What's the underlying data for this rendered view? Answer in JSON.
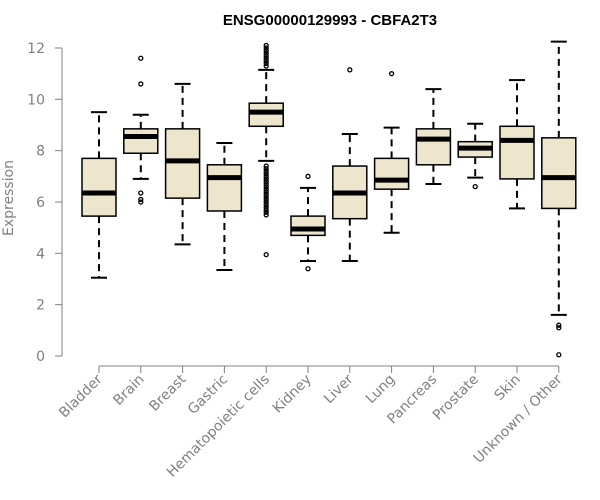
{
  "chart_data": {
    "type": "boxplot",
    "title": "ENSG00000129993 - CBFA2T3",
    "xlabel": "",
    "ylabel": "Expression",
    "ylim": [
      0,
      12
    ],
    "yticks": [
      0,
      2,
      4,
      6,
      8,
      10,
      12
    ],
    "box_fill": "#ede5cc",
    "categories": [
      "Bladder",
      "Brain",
      "Breast",
      "Gastric",
      "Hematopoietic cells",
      "Kidney",
      "Liver",
      "Lung",
      "Pancreas",
      "Prostate",
      "Skin",
      "Unknown / Other"
    ],
    "boxes": [
      {
        "category": "Bladder",
        "whisker_low": 3.05,
        "q1": 5.45,
        "median": 6.35,
        "q3": 7.7,
        "whisker_high": 9.5,
        "outliers": []
      },
      {
        "category": "Brain",
        "whisker_low": 6.9,
        "q1": 7.9,
        "median": 8.55,
        "q3": 8.85,
        "whisker_high": 9.4,
        "outliers": [
          11.6,
          10.6,
          6.35,
          6.1,
          6.0
        ]
      },
      {
        "category": "Breast",
        "whisker_low": 4.35,
        "q1": 6.15,
        "median": 7.6,
        "q3": 8.85,
        "whisker_high": 10.6,
        "outliers": []
      },
      {
        "category": "Gastric",
        "whisker_low": 3.35,
        "q1": 5.65,
        "median": 6.95,
        "q3": 7.45,
        "whisker_high": 8.3,
        "outliers": []
      },
      {
        "category": "Hematopoietic cells",
        "whisker_low": 7.6,
        "q1": 8.95,
        "median": 9.5,
        "q3": 9.85,
        "whisker_high": 11.15,
        "outliers": [
          12.1,
          12.0,
          11.9,
          11.8,
          11.7,
          11.6,
          11.5,
          11.4,
          11.3,
          7.4,
          7.3,
          7.2,
          7.1,
          7.0,
          6.9,
          6.8,
          6.7,
          6.6,
          6.5,
          6.4,
          6.3,
          6.2,
          6.1,
          6.0,
          5.9,
          5.8,
          5.7,
          5.6,
          5.5,
          3.95
        ]
      },
      {
        "category": "Kidney",
        "whisker_low": 3.7,
        "q1": 4.7,
        "median": 4.95,
        "q3": 5.45,
        "whisker_high": 6.55,
        "outliers": [
          7.0,
          3.4
        ]
      },
      {
        "category": "Liver",
        "whisker_low": 3.7,
        "q1": 5.35,
        "median": 6.35,
        "q3": 7.4,
        "whisker_high": 8.65,
        "outliers": [
          11.15
        ]
      },
      {
        "category": "Lung",
        "whisker_low": 4.8,
        "q1": 6.5,
        "median": 6.85,
        "q3": 7.7,
        "whisker_high": 8.9,
        "outliers": [
          11.0
        ]
      },
      {
        "category": "Pancreas",
        "whisker_low": 6.7,
        "q1": 7.45,
        "median": 8.45,
        "q3": 8.85,
        "whisker_high": 10.4,
        "outliers": []
      },
      {
        "category": "Prostate",
        "whisker_low": 6.95,
        "q1": 7.75,
        "median": 8.1,
        "q3": 8.35,
        "whisker_high": 9.05,
        "outliers": [
          6.6
        ]
      },
      {
        "category": "Skin",
        "whisker_low": 5.75,
        "q1": 6.9,
        "median": 8.4,
        "q3": 8.95,
        "whisker_high": 10.75,
        "outliers": []
      },
      {
        "category": "Unknown / Other",
        "whisker_low": 1.6,
        "q1": 5.75,
        "median": 6.95,
        "q3": 8.5,
        "whisker_high": 12.25,
        "outliers": [
          1.2,
          1.1,
          0.05
        ]
      }
    ]
  }
}
